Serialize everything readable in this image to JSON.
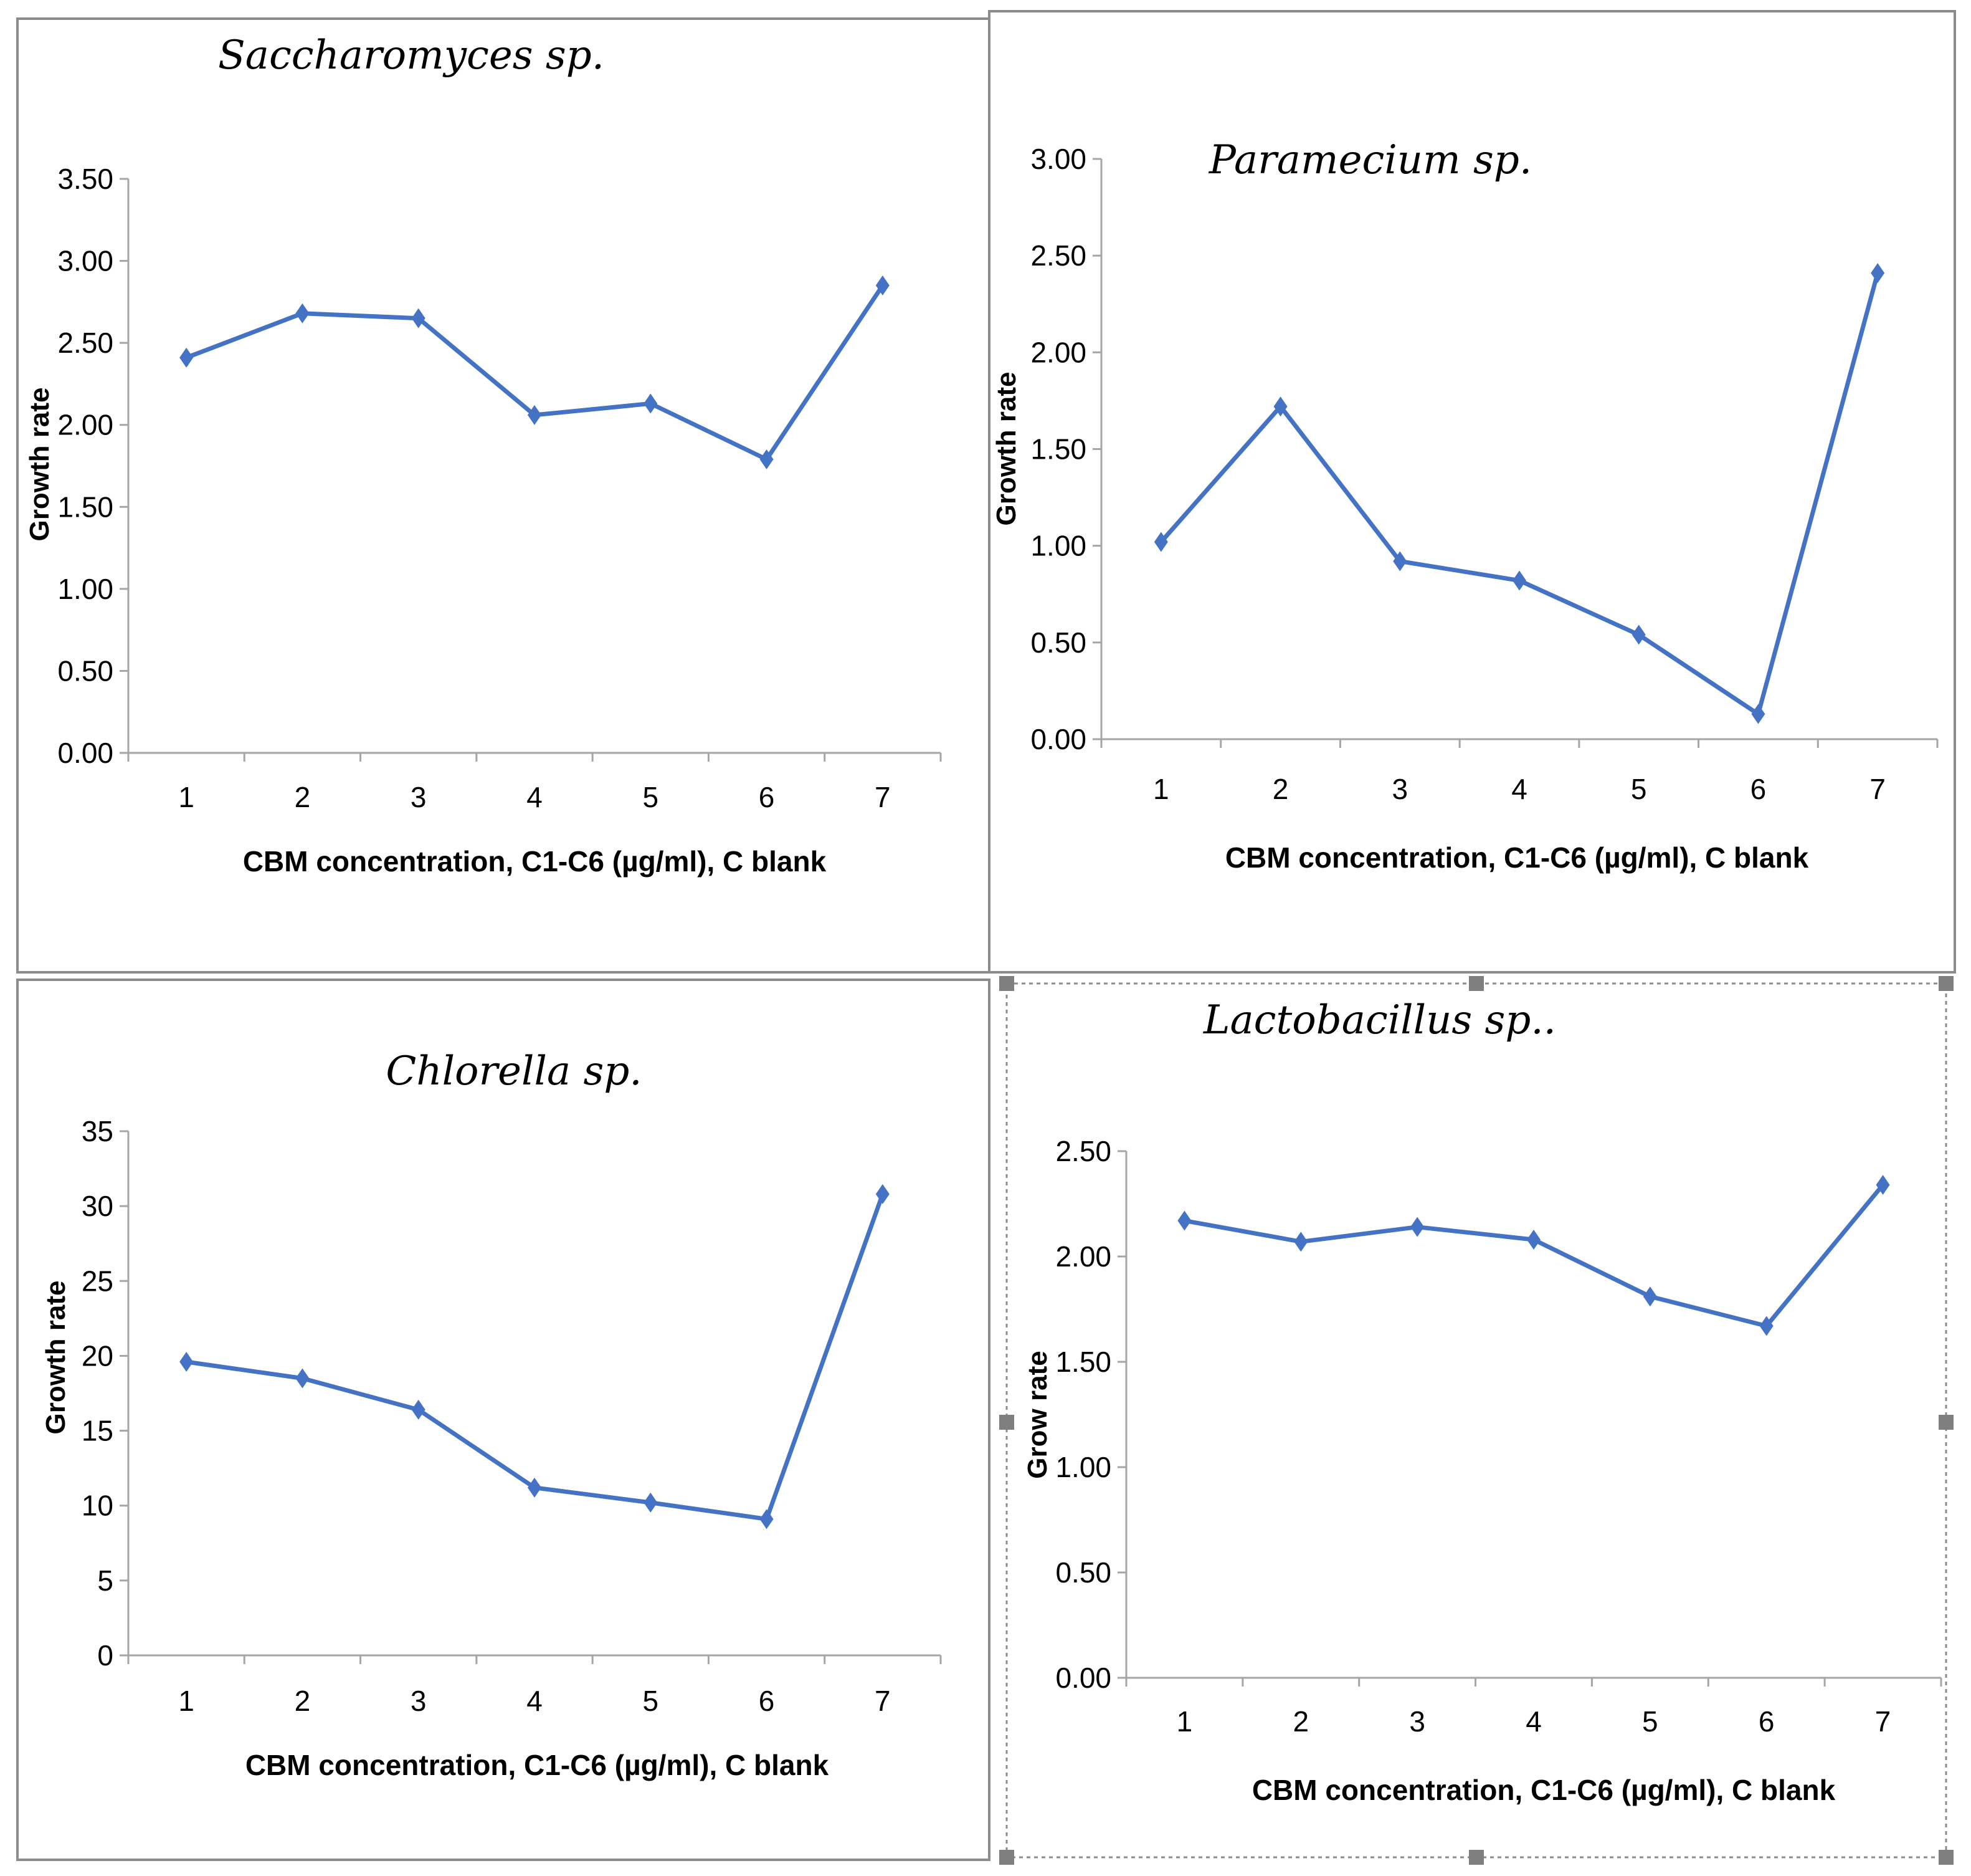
{
  "chart_data": [
    {
      "type": "line",
      "title": "Saccharomyces sp.",
      "xlabel": "CBM concentration, C1-C6 (µg/ml), C blank",
      "ylabel": "Growth rate",
      "categories": [
        "1",
        "2",
        "3",
        "4",
        "5",
        "6",
        "7"
      ],
      "values": [
        2.41,
        2.68,
        2.65,
        2.06,
        2.13,
        1.79,
        2.85
      ],
      "ylim": [
        0,
        3.5
      ],
      "yticks": [
        "0.00",
        "0.50",
        "1.00",
        "1.50",
        "2.00",
        "2.50",
        "3.00",
        "3.50"
      ],
      "series_color": "#4472c4"
    },
    {
      "type": "line",
      "title": "Paramecium sp.",
      "xlabel": "CBM concentration, C1-C6 (µg/ml), C blank",
      "ylabel": "Growth rate",
      "categories": [
        "1",
        "2",
        "3",
        "4",
        "5",
        "6",
        "7"
      ],
      "values": [
        1.02,
        1.72,
        0.92,
        0.82,
        0.54,
        0.13,
        2.41
      ],
      "ylim": [
        0,
        3
      ],
      "yticks": [
        "0.00",
        "0.50",
        "1.00",
        "1.50",
        "2.00",
        "2.50",
        "3.00"
      ],
      "series_color": "#4472c4"
    },
    {
      "type": "line",
      "title": "Chlorella sp.",
      "xlabel": "CBM concentration, C1-C6 (µg/ml), C blank",
      "ylabel": "Growth rate",
      "categories": [
        "1",
        "2",
        "3",
        "4",
        "5",
        "6",
        "7"
      ],
      "values": [
        19.6,
        18.5,
        16.4,
        11.2,
        10.2,
        9.1,
        30.8
      ],
      "ylim": [
        0,
        35
      ],
      "yticks": [
        "0",
        "5",
        "10",
        "15",
        "20",
        "25",
        "30",
        "35"
      ],
      "series_color": "#4472c4"
    },
    {
      "type": "line",
      "title": "Lactobacillus sp..",
      "xlabel": "CBM concentration, C1-C6 (µg/ml), C blank",
      "ylabel": "Grow rate",
      "categories": [
        "1",
        "2",
        "3",
        "4",
        "5",
        "6",
        "7"
      ],
      "values": [
        2.17,
        2.07,
        2.14,
        2.08,
        1.81,
        1.67,
        2.34
      ],
      "ylim": [
        0,
        2.5
      ],
      "yticks": [
        "0.00",
        "0.50",
        "1.00",
        "1.50",
        "2.00",
        "2.50"
      ],
      "series_color": "#4472c4"
    }
  ]
}
